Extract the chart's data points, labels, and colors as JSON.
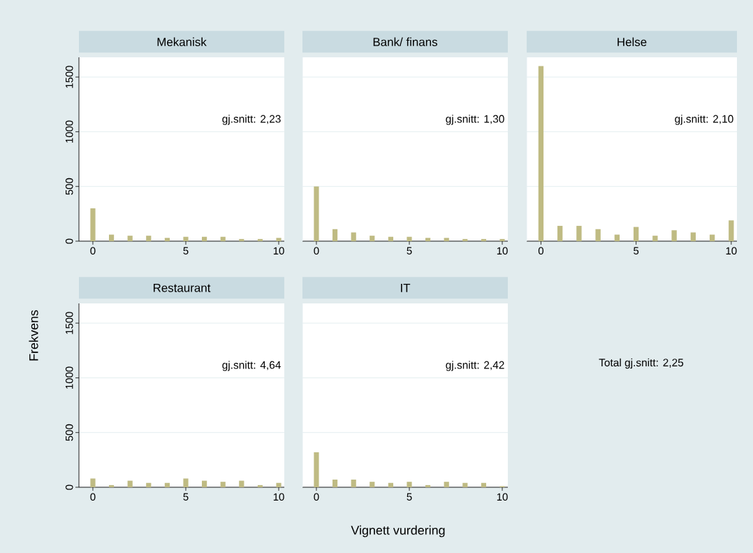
{
  "chart_data": [
    {
      "type": "bar",
      "title": "Mekanisk",
      "x": [
        0,
        1,
        2,
        3,
        4,
        5,
        6,
        7,
        8,
        9,
        10
      ],
      "values": [
        300,
        60,
        50,
        50,
        30,
        40,
        40,
        40,
        20,
        20,
        30
      ],
      "color": "#bfbb83",
      "xlim": [
        -0.75,
        10.3
      ],
      "xticks": [
        0,
        5,
        10
      ],
      "ylim": [
        0,
        1680
      ],
      "yticks": [
        0,
        500,
        1000,
        1500
      ],
      "grid": "y",
      "annotations": [
        "gj.snitt: 2,23"
      ]
    },
    {
      "type": "bar",
      "title": "Bank/ finans",
      "x": [
        0,
        1,
        2,
        3,
        4,
        5,
        6,
        7,
        8,
        9,
        10
      ],
      "values": [
        500,
        110,
        80,
        50,
        40,
        40,
        30,
        30,
        20,
        20,
        20
      ],
      "color": "#bfbb83",
      "xlim": [
        -0.75,
        10.3
      ],
      "xticks": [
        0,
        5,
        10
      ],
      "ylim": [
        0,
        1680
      ],
      "yticks": [
        0,
        500,
        1000,
        1500
      ],
      "grid": "y",
      "tick_labels": "x",
      "annotations": [
        "gj.snitt: 1,30"
      ]
    },
    {
      "type": "bar",
      "title": "Helse",
      "x": [
        0,
        1,
        2,
        3,
        4,
        5,
        6,
        7,
        8,
        9,
        10
      ],
      "values": [
        1600,
        140,
        140,
        110,
        60,
        130,
        50,
        100,
        80,
        60,
        190
      ],
      "color": "#bfbb83",
      "xlim": [
        -0.75,
        10.3
      ],
      "xticks": [
        0,
        5,
        10
      ],
      "ylim": [
        0,
        1680
      ],
      "yticks": [
        0,
        500,
        1000,
        1500
      ],
      "grid": "y",
      "tick_labels": "x",
      "annotations": [
        "gj.snitt: 2,10"
      ]
    },
    {
      "type": "bar",
      "title": "Restaurant",
      "ylabel": "Frekvens",
      "x": [
        0,
        1,
        2,
        3,
        4,
        5,
        6,
        7,
        8,
        9,
        10
      ],
      "values": [
        80,
        20,
        60,
        40,
        40,
        80,
        60,
        50,
        60,
        20,
        40
      ],
      "color": "#bfbb83",
      "xlim": [
        -0.75,
        10.3
      ],
      "xticks": [
        0,
        5,
        10
      ],
      "ylim": [
        0,
        1680
      ],
      "yticks": [
        0,
        500,
        1000,
        1500
      ],
      "grid": "y",
      "annotations": [
        "gj.snitt: 4,64"
      ]
    },
    {
      "type": "bar",
      "title": "IT",
      "xlabel": "Vignett vurdering",
      "x": [
        0,
        1,
        2,
        3,
        4,
        5,
        6,
        7,
        8,
        9,
        10
      ],
      "values": [
        320,
        70,
        70,
        50,
        40,
        50,
        20,
        50,
        40,
        40,
        10
      ],
      "color": "#bfbb83",
      "xlim": [
        -0.75,
        10.3
      ],
      "xticks": [
        0,
        5,
        10
      ],
      "ylim": [
        0,
        1680
      ],
      "yticks": [
        0,
        500,
        1000,
        1500
      ],
      "grid": "y",
      "tick_labels": "x",
      "annotations": [
        "gj.snitt: 2,42"
      ]
    },
    {
      "type": "other",
      "annotations": [
        "Total gj.snitt: 2,25"
      ]
    }
  ]
}
